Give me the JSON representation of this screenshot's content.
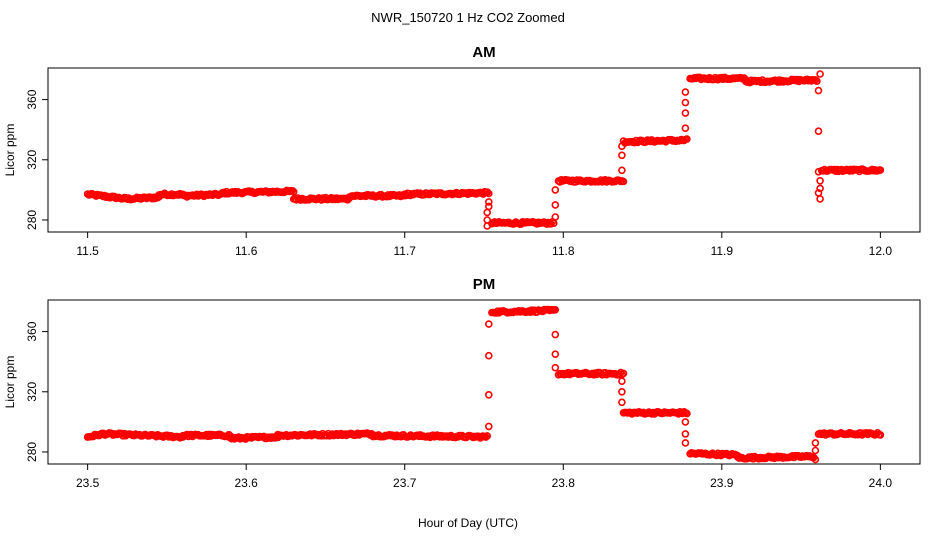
{
  "figure": {
    "title": "NWR_150720  1 Hz CO2 Zoomed",
    "xlabel": "Hour of Day (UTC)",
    "point_color": "#ff0000"
  },
  "chart_data": [
    {
      "type": "scatter",
      "title": "AM",
      "xlabel": "",
      "ylabel": "Licor ppm",
      "xlim": [
        11.475,
        12.025
      ],
      "ylim": [
        272,
        381
      ],
      "xticks": [
        "11.5",
        "11.6",
        "11.7",
        "11.8",
        "11.9",
        "12.0"
      ],
      "yticks": [
        "280",
        "320",
        "360"
      ],
      "grid": false,
      "legend": "none",
      "segments": [
        {
          "x": [
            11.5,
            11.525
          ],
          "y": [
            297,
            294
          ]
        },
        {
          "x": [
            11.525,
            11.545
          ],
          "y": [
            294,
            295
          ]
        },
        {
          "x": [
            11.545,
            11.56
          ],
          "y": [
            297,
            297
          ]
        },
        {
          "x": [
            11.56,
            11.585
          ],
          "y": [
            296,
            297
          ]
        },
        {
          "x": [
            11.585,
            11.63
          ],
          "y": [
            298,
            299
          ]
        },
        {
          "x": [
            11.63,
            11.665
          ],
          "y": [
            294,
            294
          ]
        },
        {
          "x": [
            11.665,
            11.7
          ],
          "y": [
            296,
            296
          ]
        },
        {
          "x": [
            11.7,
            11.753
          ],
          "y": [
            297,
            298
          ]
        },
        {
          "x": [
            11.755,
            11.794
          ],
          "y": [
            278,
            278
          ]
        },
        {
          "x": [
            11.797,
            11.838
          ],
          "y": [
            306,
            306
          ]
        },
        {
          "x": [
            11.838,
            11.878
          ],
          "y": [
            332,
            333
          ]
        },
        {
          "x": [
            11.88,
            11.915
          ],
          "y": [
            374,
            374
          ]
        },
        {
          "x": [
            11.915,
            11.96
          ],
          "y": [
            372,
            373
          ]
        },
        {
          "x": [
            11.963,
            12.0
          ],
          "y": [
            313,
            313
          ]
        }
      ],
      "transitions": [
        {
          "x": 11.752,
          "y": [
            285,
            280,
            276
          ]
        },
        {
          "x": 11.753,
          "y": [
            292,
            289
          ]
        },
        {
          "x": 11.795,
          "y": [
            282,
            290,
            300
          ]
        },
        {
          "x": 11.837,
          "y": [
            313,
            323,
            329
          ]
        },
        {
          "x": 11.877,
          "y": [
            341,
            351,
            358,
            365
          ]
        },
        {
          "x": 11.961,
          "y": [
            366,
            339,
            312,
            298
          ]
        },
        {
          "x": 11.962,
          "y": [
            377,
            294,
            301,
            306
          ]
        }
      ]
    },
    {
      "type": "scatter",
      "title": "PM",
      "xlabel": "",
      "ylabel": "Licor ppm",
      "xlim": [
        23.475,
        24.025
      ],
      "ylim": [
        272,
        381
      ],
      "xticks": [
        "23.5",
        "23.6",
        "23.7",
        "23.8",
        "23.9",
        "24.0"
      ],
      "yticks": [
        "280",
        "320",
        "360"
      ],
      "grid": false,
      "legend": "none",
      "segments": [
        {
          "x": [
            23.5,
            23.51
          ],
          "y": [
            290,
            292
          ]
        },
        {
          "x": [
            23.51,
            23.56
          ],
          "y": [
            292,
            290
          ]
        },
        {
          "x": [
            23.56,
            23.59
          ],
          "y": [
            291,
            291
          ]
        },
        {
          "x": [
            23.59,
            23.62
          ],
          "y": [
            289,
            290
          ]
        },
        {
          "x": [
            23.62,
            23.68
          ],
          "y": [
            291,
            292
          ]
        },
        {
          "x": [
            23.68,
            23.752
          ],
          "y": [
            291,
            290
          ]
        },
        {
          "x": [
            23.755,
            23.795
          ],
          "y": [
            373,
            374
          ]
        },
        {
          "x": [
            23.797,
            23.838
          ],
          "y": [
            332,
            332
          ]
        },
        {
          "x": [
            23.838,
            23.878
          ],
          "y": [
            306,
            306
          ]
        },
        {
          "x": [
            23.88,
            23.91
          ],
          "y": [
            279,
            278
          ]
        },
        {
          "x": [
            23.91,
            23.958
          ],
          "y": [
            276,
            277
          ]
        },
        {
          "x": [
            23.961,
            24.0
          ],
          "y": [
            292,
            292
          ]
        }
      ],
      "transitions": [
        {
          "x": 23.753,
          "y": [
            297,
            318,
            344,
            365
          ]
        },
        {
          "x": 23.795,
          "y": [
            358,
            345,
            336
          ]
        },
        {
          "x": 23.837,
          "y": [
            327,
            320,
            313
          ]
        },
        {
          "x": 23.877,
          "y": [
            300,
            292,
            286
          ]
        },
        {
          "x": 23.959,
          "y": [
            275,
            281,
            286
          ]
        }
      ]
    }
  ]
}
